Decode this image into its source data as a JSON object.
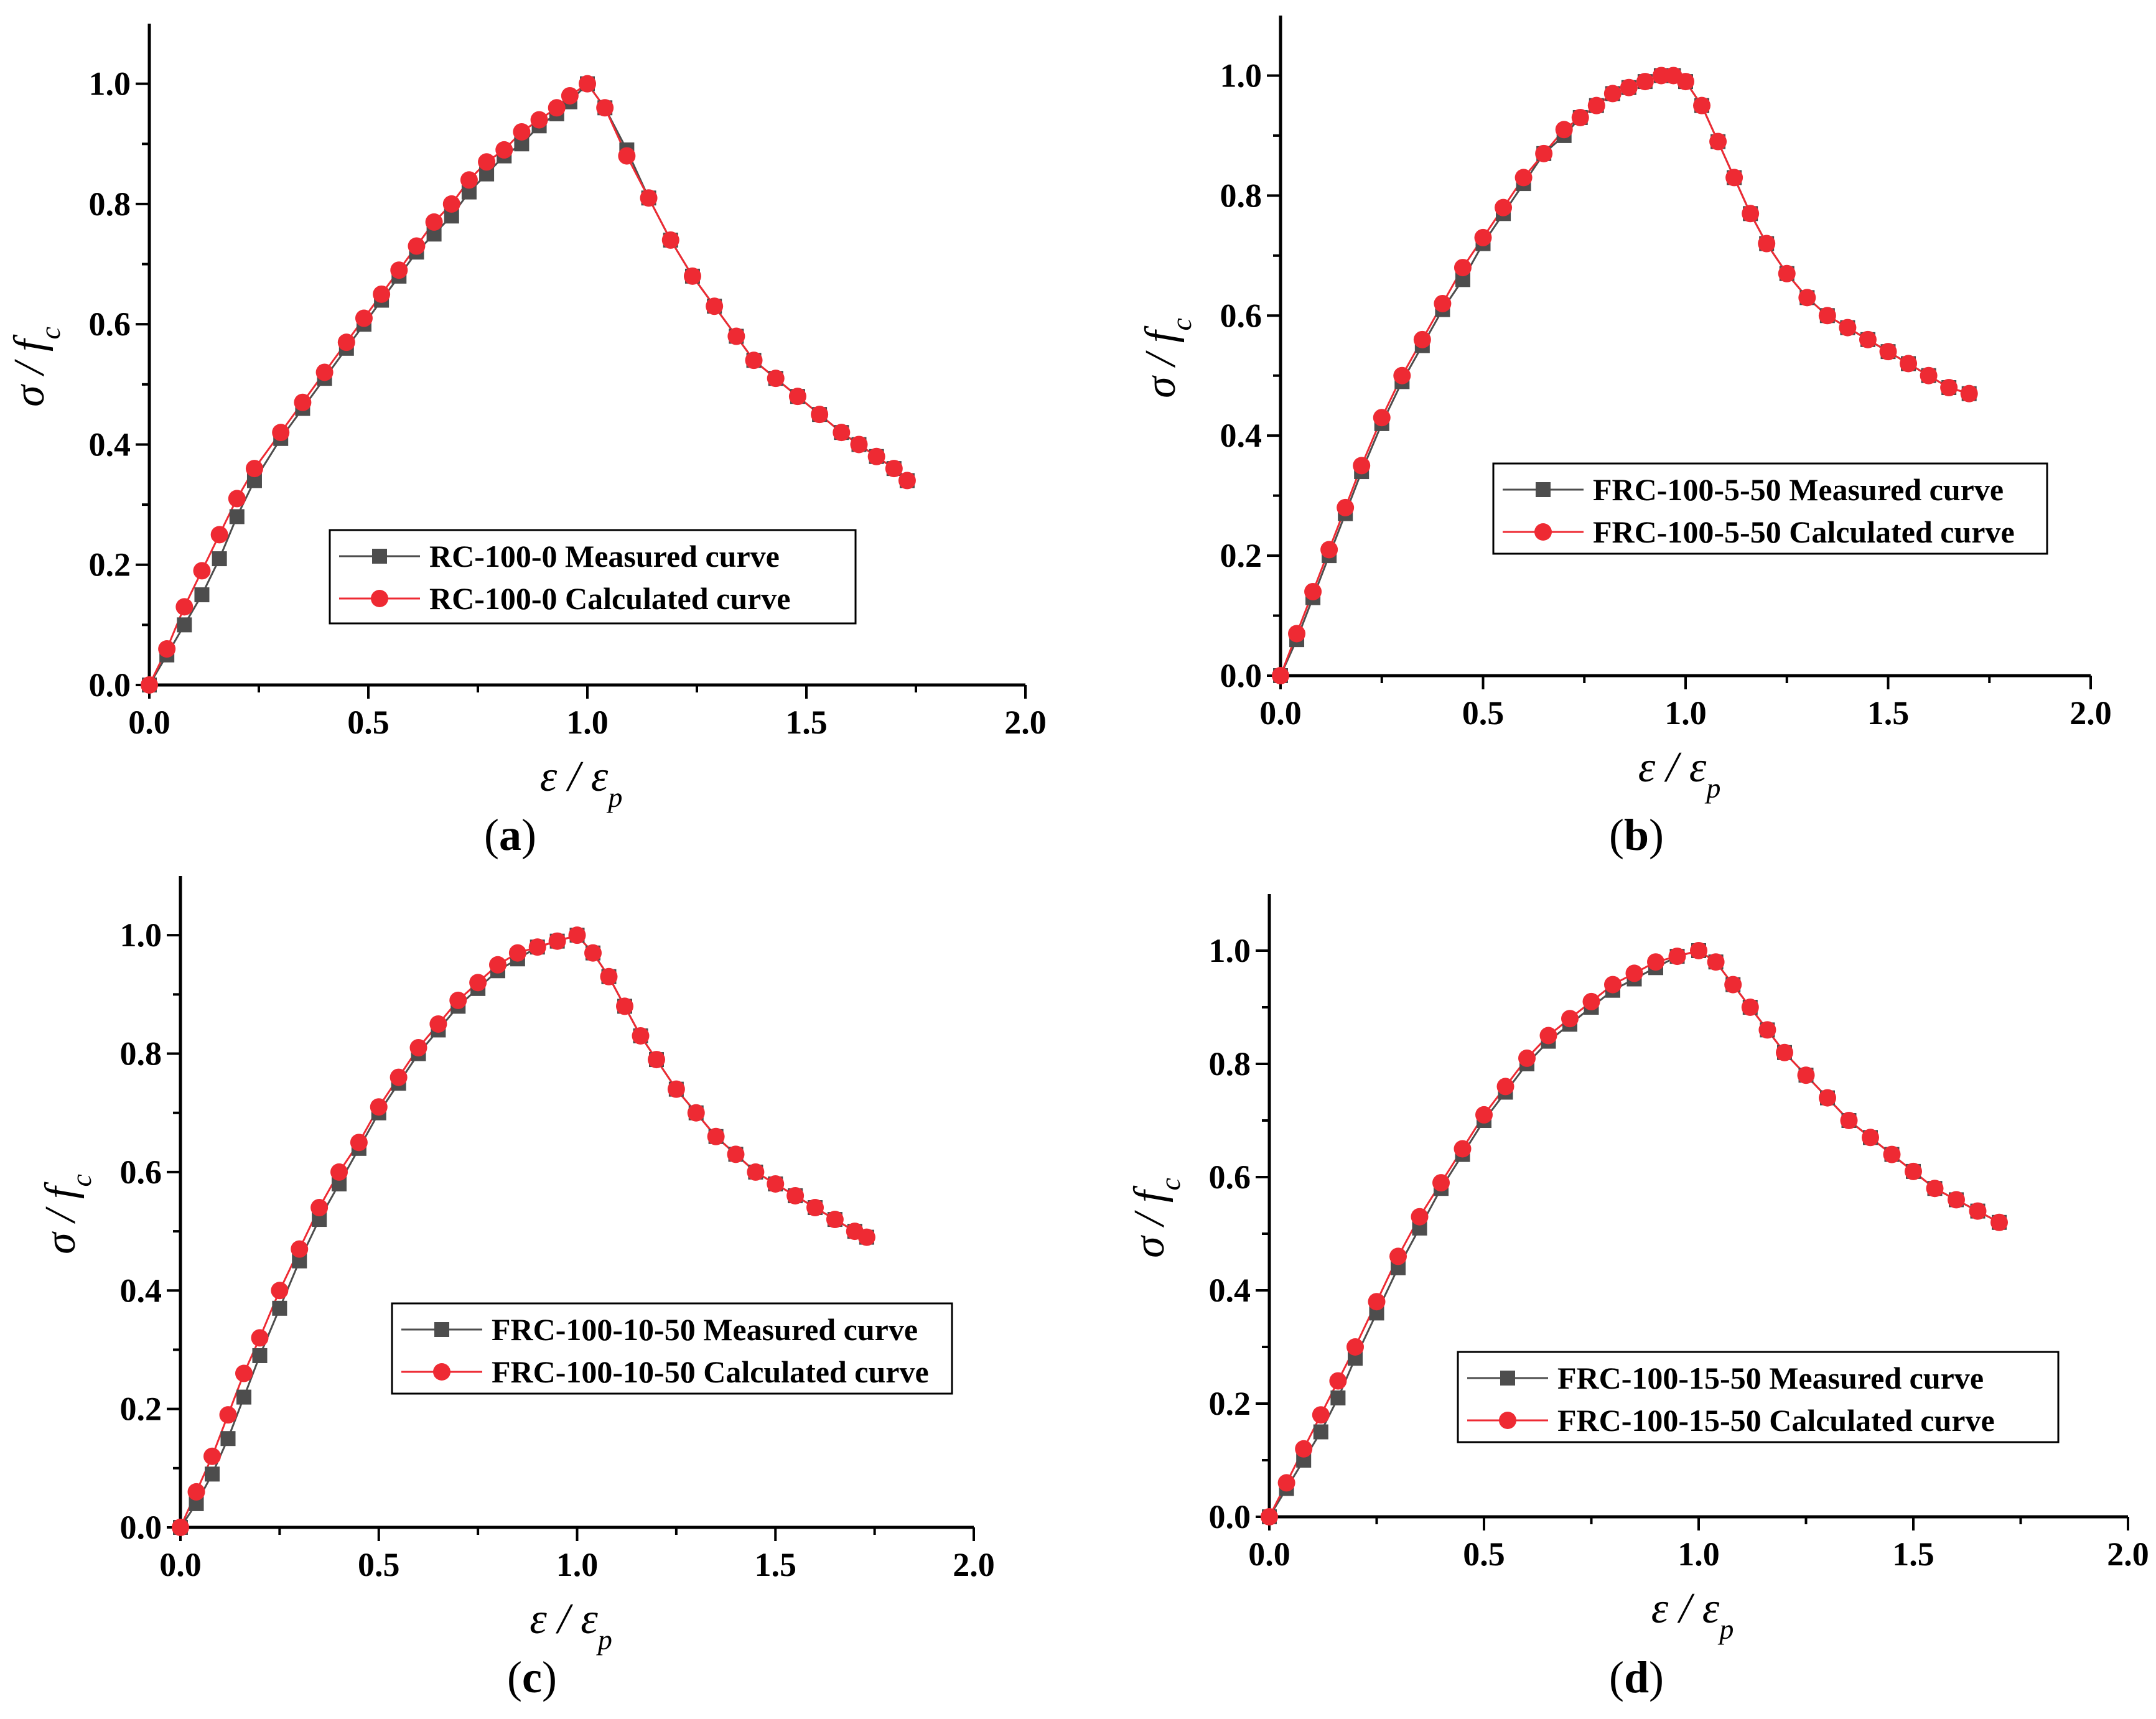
{
  "figure": {
    "colors": {
      "measured": "#4d4d4d",
      "calculated": "#ee2a33",
      "axis": "#000000"
    }
  },
  "chart_data": [
    {
      "panel": "a",
      "caption_open": "(",
      "caption_letter": "a",
      "caption_close": ")",
      "type": "line",
      "xlabel": "ε / ε",
      "xlabel_sub": "p",
      "ylabel": "σ / f",
      "ylabel_sub": "c",
      "xlim": [
        0,
        2
      ],
      "ylim": [
        0,
        1.1
      ],
      "xticks": [
        "0.0",
        "0.5",
        "1.0",
        "1.5",
        "2.0"
      ],
      "yticks": [
        "0.0",
        "0.2",
        "0.4",
        "0.6",
        "0.8",
        "1.0"
      ],
      "legend_position": "lower-center",
      "series": [
        {
          "name": "RC-100-0 Measured curve",
          "marker": "square",
          "x": [
            0,
            0.04,
            0.08,
            0.12,
            0.16,
            0.2,
            0.24,
            0.3,
            0.35,
            0.4,
            0.45,
            0.49,
            0.53,
            0.57,
            0.61,
            0.65,
            0.69,
            0.73,
            0.77,
            0.81,
            0.85,
            0.89,
            0.93,
            0.96,
            1.0,
            1.04,
            1.09,
            1.14,
            1.19,
            1.24,
            1.29,
            1.34,
            1.38,
            1.43,
            1.48,
            1.53,
            1.58,
            1.62,
            1.66,
            1.7,
            1.73
          ],
          "y": [
            0,
            0.05,
            0.1,
            0.15,
            0.21,
            0.28,
            0.34,
            0.41,
            0.46,
            0.51,
            0.56,
            0.6,
            0.64,
            0.68,
            0.72,
            0.75,
            0.78,
            0.82,
            0.85,
            0.88,
            0.9,
            0.93,
            0.95,
            0.97,
            1.0,
            0.96,
            0.89,
            0.81,
            0.74,
            0.68,
            0.63,
            0.58,
            0.54,
            0.51,
            0.48,
            0.45,
            0.42,
            0.4,
            0.38,
            0.36,
            0.34
          ]
        },
        {
          "name": "RC-100-0 Calculated curve",
          "marker": "circle",
          "x": [
            0,
            0.04,
            0.08,
            0.12,
            0.16,
            0.2,
            0.24,
            0.3,
            0.35,
            0.4,
            0.45,
            0.49,
            0.53,
            0.57,
            0.61,
            0.65,
            0.69,
            0.73,
            0.77,
            0.81,
            0.85,
            0.89,
            0.93,
            0.96,
            1.0,
            1.04,
            1.09,
            1.14,
            1.19,
            1.24,
            1.29,
            1.34,
            1.38,
            1.43,
            1.48,
            1.53,
            1.58,
            1.62,
            1.66,
            1.7,
            1.73
          ],
          "y": [
            0,
            0.06,
            0.13,
            0.19,
            0.25,
            0.31,
            0.36,
            0.42,
            0.47,
            0.52,
            0.57,
            0.61,
            0.65,
            0.69,
            0.73,
            0.77,
            0.8,
            0.84,
            0.87,
            0.89,
            0.92,
            0.94,
            0.96,
            0.98,
            1.0,
            0.96,
            0.88,
            0.81,
            0.74,
            0.68,
            0.63,
            0.58,
            0.54,
            0.51,
            0.48,
            0.45,
            0.42,
            0.4,
            0.38,
            0.36,
            0.34
          ]
        }
      ]
    },
    {
      "panel": "b",
      "caption_open": "(",
      "caption_letter": "b",
      "caption_close": ")",
      "type": "line",
      "xlabel": "ε / ε",
      "xlabel_sub": "p",
      "ylabel": "σ / f",
      "ylabel_sub": "c",
      "xlim": [
        0,
        2
      ],
      "ylim": [
        0,
        1.1
      ],
      "xticks": [
        "0.0",
        "0.5",
        "1.0",
        "1.5",
        "2.0"
      ],
      "yticks": [
        "0.0",
        "0.2",
        "0.4",
        "0.6",
        "0.8",
        "1.0"
      ],
      "legend_position": "center-right",
      "series": [
        {
          "name": "FRC-100-5-50 Measured curve",
          "marker": "square",
          "x": [
            0,
            0.04,
            0.08,
            0.12,
            0.16,
            0.2,
            0.25,
            0.3,
            0.35,
            0.4,
            0.45,
            0.5,
            0.55,
            0.6,
            0.65,
            0.7,
            0.74,
            0.78,
            0.82,
            0.86,
            0.9,
            0.94,
            0.97,
            1.0,
            1.04,
            1.08,
            1.12,
            1.16,
            1.2,
            1.25,
            1.3,
            1.35,
            1.4,
            1.45,
            1.5,
            1.55,
            1.6,
            1.65,
            1.7
          ],
          "y": [
            0,
            0.06,
            0.13,
            0.2,
            0.27,
            0.34,
            0.42,
            0.49,
            0.55,
            0.61,
            0.66,
            0.72,
            0.77,
            0.82,
            0.87,
            0.9,
            0.93,
            0.95,
            0.97,
            0.98,
            0.99,
            1.0,
            1.0,
            0.99,
            0.95,
            0.89,
            0.83,
            0.77,
            0.72,
            0.67,
            0.63,
            0.6,
            0.58,
            0.56,
            0.54,
            0.52,
            0.5,
            0.48,
            0.47
          ]
        },
        {
          "name": "FRC-100-5-50 Calculated curve",
          "marker": "circle",
          "x": [
            0,
            0.04,
            0.08,
            0.12,
            0.16,
            0.2,
            0.25,
            0.3,
            0.35,
            0.4,
            0.45,
            0.5,
            0.55,
            0.6,
            0.65,
            0.7,
            0.74,
            0.78,
            0.82,
            0.86,
            0.9,
            0.94,
            0.97,
            1.0,
            1.04,
            1.08,
            1.12,
            1.16,
            1.2,
            1.25,
            1.3,
            1.35,
            1.4,
            1.45,
            1.5,
            1.55,
            1.6,
            1.65,
            1.7
          ],
          "y": [
            0,
            0.07,
            0.14,
            0.21,
            0.28,
            0.35,
            0.43,
            0.5,
            0.56,
            0.62,
            0.68,
            0.73,
            0.78,
            0.83,
            0.87,
            0.91,
            0.93,
            0.95,
            0.97,
            0.98,
            0.99,
            1.0,
            1.0,
            0.99,
            0.95,
            0.89,
            0.83,
            0.77,
            0.72,
            0.67,
            0.63,
            0.6,
            0.58,
            0.56,
            0.54,
            0.52,
            0.5,
            0.48,
            0.47
          ]
        }
      ]
    },
    {
      "panel": "c",
      "caption_open": "(",
      "caption_letter": "c",
      "caption_close": ")",
      "type": "line",
      "xlabel": "ε / ε",
      "xlabel_sub": "p",
      "ylabel": "σ / f",
      "ylabel_sub": "c",
      "xlim": [
        0,
        2
      ],
      "ylim": [
        0,
        1.1
      ],
      "xticks": [
        "0.0",
        "0.5",
        "1.0",
        "1.5",
        "2.0"
      ],
      "yticks": [
        "0.0",
        "0.2",
        "0.4",
        "0.6",
        "0.8",
        "1.0"
      ],
      "legend_position": "center-right",
      "series": [
        {
          "name": "FRC-100-10-50 Measured curve",
          "marker": "square",
          "x": [
            0,
            0.04,
            0.08,
            0.12,
            0.16,
            0.2,
            0.25,
            0.3,
            0.35,
            0.4,
            0.45,
            0.5,
            0.55,
            0.6,
            0.65,
            0.7,
            0.75,
            0.8,
            0.85,
            0.9,
            0.95,
            1.0,
            1.04,
            1.08,
            1.12,
            1.16,
            1.2,
            1.25,
            1.3,
            1.35,
            1.4,
            1.45,
            1.5,
            1.55,
            1.6,
            1.65,
            1.7,
            1.73
          ],
          "y": [
            0,
            0.04,
            0.09,
            0.15,
            0.22,
            0.29,
            0.37,
            0.45,
            0.52,
            0.58,
            0.64,
            0.7,
            0.75,
            0.8,
            0.84,
            0.88,
            0.91,
            0.94,
            0.96,
            0.98,
            0.99,
            1.0,
            0.97,
            0.93,
            0.88,
            0.83,
            0.79,
            0.74,
            0.7,
            0.66,
            0.63,
            0.6,
            0.58,
            0.56,
            0.54,
            0.52,
            0.5,
            0.49
          ]
        },
        {
          "name": "FRC-100-10-50 Calculated curve",
          "marker": "circle",
          "x": [
            0,
            0.04,
            0.08,
            0.12,
            0.16,
            0.2,
            0.25,
            0.3,
            0.35,
            0.4,
            0.45,
            0.5,
            0.55,
            0.6,
            0.65,
            0.7,
            0.75,
            0.8,
            0.85,
            0.9,
            0.95,
            1.0,
            1.04,
            1.08,
            1.12,
            1.16,
            1.2,
            1.25,
            1.3,
            1.35,
            1.4,
            1.45,
            1.5,
            1.55,
            1.6,
            1.65,
            1.7,
            1.73
          ],
          "y": [
            0,
            0.06,
            0.12,
            0.19,
            0.26,
            0.32,
            0.4,
            0.47,
            0.54,
            0.6,
            0.65,
            0.71,
            0.76,
            0.81,
            0.85,
            0.89,
            0.92,
            0.95,
            0.97,
            0.98,
            0.99,
            1.0,
            0.97,
            0.93,
            0.88,
            0.83,
            0.79,
            0.74,
            0.7,
            0.66,
            0.63,
            0.6,
            0.58,
            0.56,
            0.54,
            0.52,
            0.5,
            0.49
          ]
        }
      ]
    },
    {
      "panel": "d",
      "caption_open": "(",
      "caption_letter": "d",
      "caption_close": ")",
      "type": "line",
      "xlabel": "ε / ε",
      "xlabel_sub": "p",
      "ylabel": "σ / f",
      "ylabel_sub": "c",
      "xlim": [
        0,
        2
      ],
      "ylim": [
        0,
        1.1
      ],
      "xticks": [
        "0.0",
        "0.5",
        "1.0",
        "1.5",
        "2.0"
      ],
      "yticks": [
        "0.0",
        "0.2",
        "0.4",
        "0.6",
        "0.8",
        "1.0"
      ],
      "legend_position": "lower-right",
      "series": [
        {
          "name": "FRC-100-15-50 Measured curve",
          "marker": "square",
          "x": [
            0,
            0.04,
            0.08,
            0.12,
            0.16,
            0.2,
            0.25,
            0.3,
            0.35,
            0.4,
            0.45,
            0.5,
            0.55,
            0.6,
            0.65,
            0.7,
            0.75,
            0.8,
            0.85,
            0.9,
            0.95,
            1.0,
            1.04,
            1.08,
            1.12,
            1.16,
            1.2,
            1.25,
            1.3,
            1.35,
            1.4,
            1.45,
            1.5,
            1.55,
            1.6,
            1.65,
            1.7
          ],
          "y": [
            0,
            0.05,
            0.1,
            0.15,
            0.21,
            0.28,
            0.36,
            0.44,
            0.51,
            0.58,
            0.64,
            0.7,
            0.75,
            0.8,
            0.84,
            0.87,
            0.9,
            0.93,
            0.95,
            0.97,
            0.99,
            1.0,
            0.98,
            0.94,
            0.9,
            0.86,
            0.82,
            0.78,
            0.74,
            0.7,
            0.67,
            0.64,
            0.61,
            0.58,
            0.56,
            0.54,
            0.52
          ]
        },
        {
          "name": "FRC-100-15-50 Calculated curve",
          "marker": "circle",
          "x": [
            0,
            0.04,
            0.08,
            0.12,
            0.16,
            0.2,
            0.25,
            0.3,
            0.35,
            0.4,
            0.45,
            0.5,
            0.55,
            0.6,
            0.65,
            0.7,
            0.75,
            0.8,
            0.85,
            0.9,
            0.95,
            1.0,
            1.04,
            1.08,
            1.12,
            1.16,
            1.2,
            1.25,
            1.3,
            1.35,
            1.4,
            1.45,
            1.5,
            1.55,
            1.6,
            1.65,
            1.7
          ],
          "y": [
            0,
            0.06,
            0.12,
            0.18,
            0.24,
            0.3,
            0.38,
            0.46,
            0.53,
            0.59,
            0.65,
            0.71,
            0.76,
            0.81,
            0.85,
            0.88,
            0.91,
            0.94,
            0.96,
            0.98,
            0.99,
            1.0,
            0.98,
            0.94,
            0.9,
            0.86,
            0.82,
            0.78,
            0.74,
            0.7,
            0.67,
            0.64,
            0.61,
            0.58,
            0.56,
            0.54,
            0.52
          ]
        }
      ]
    }
  ]
}
